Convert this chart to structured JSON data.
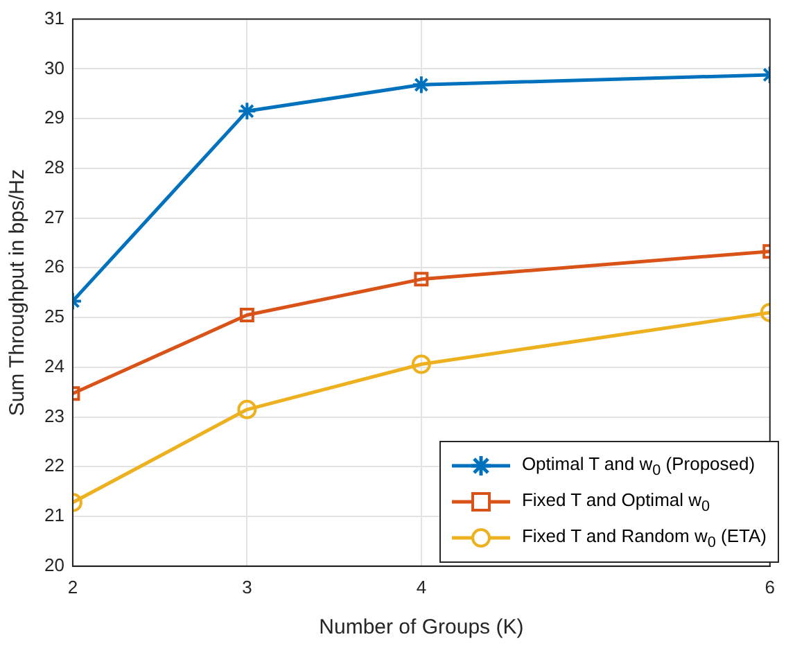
{
  "chart_data": {
    "type": "line",
    "xlabel": "Number of Groups (K)",
    "ylabel": "Sum Throughput in bps/Hz",
    "x": [
      2,
      3,
      4,
      6
    ],
    "series": [
      {
        "name": "Optimal T and w$_{0}$ (Proposed)",
        "color": "#0072bd",
        "values": [
          25.33,
          29.15,
          29.68,
          29.88
        ],
        "marker": "cross"
      },
      {
        "name": "Fixed T and Optimal w$_{0}$",
        "color": "#d95319",
        "values": [
          23.47,
          25.05,
          25.77,
          26.33
        ],
        "marker": "square"
      },
      {
        "name": "Fixed T and Random w$_{0}$ (ETA)",
        "color": "#edb120",
        "values": [
          21.28,
          23.15,
          24.06,
          25.1
        ],
        "marker": "circle"
      }
    ],
    "xlim": [
      2,
      6
    ],
    "xticks": [
      2,
      3,
      4,
      6
    ],
    "ylim": [
      20,
      31
    ],
    "yticks": [
      20,
      21,
      22,
      23,
      24,
      25,
      26,
      27,
      28,
      29,
      30,
      31
    ],
    "grid": true,
    "legend": "bottom right",
    "line_style": "solid"
  }
}
